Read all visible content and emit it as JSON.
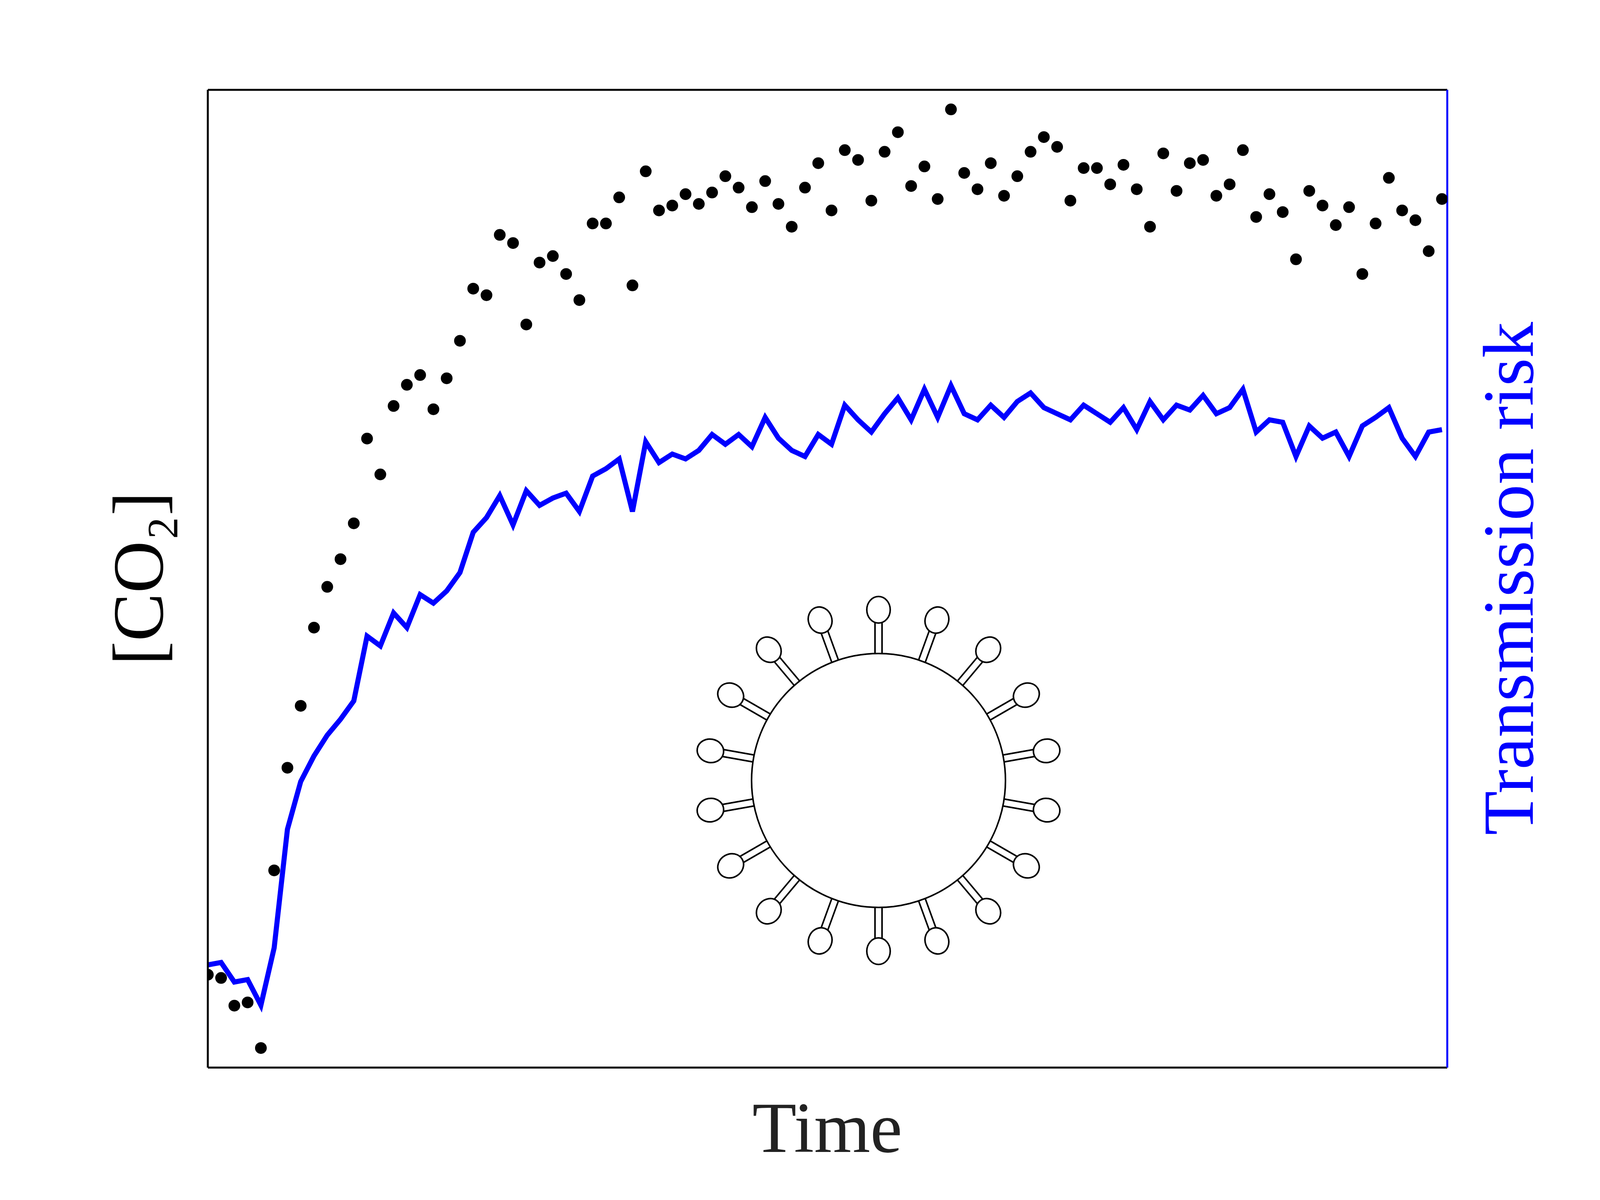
{
  "chart_data": {
    "type": "scatter",
    "x_label": "Time",
    "y_label": "[CO₂]",
    "y2_label": "Transmission risk",
    "tick_labels": false,
    "grid": false,
    "xlim": [
      0,
      4.67
    ],
    "xticks": [
      0.28,
      1.28,
      2.28,
      3.28,
      4.28
    ],
    "ylim": [
      0,
      6
    ],
    "yticks": [
      1,
      2,
      3,
      4,
      5
    ],
    "y2lim": [
      0,
      8
    ],
    "y2ticks": [
      1,
      2,
      3,
      4,
      5,
      6
    ],
    "x": [
      0,
      0.05,
      0.1,
      0.15,
      0.2,
      0.25,
      0.3,
      0.35,
      0.4,
      0.45,
      0.5,
      0.55,
      0.6,
      0.65,
      0.7,
      0.75,
      0.8,
      0.85,
      0.9,
      0.95,
      1,
      1.05,
      1.1,
      1.15,
      1.2,
      1.25,
      1.3,
      1.35,
      1.4,
      1.45,
      1.5,
      1.55,
      1.6,
      1.65,
      1.7,
      1.75,
      1.8,
      1.85,
      1.9,
      1.95,
      2,
      2.05,
      2.1,
      2.15,
      2.2,
      2.25,
      2.3,
      2.35,
      2.4,
      2.45,
      2.5,
      2.55,
      2.6,
      2.65,
      2.7,
      2.75,
      2.8,
      2.85,
      2.9,
      2.95,
      3,
      3.05,
      3.1,
      3.15,
      3.2,
      3.25,
      3.3,
      3.35,
      3.4,
      3.45,
      3.5,
      3.55,
      3.6,
      3.65,
      3.7,
      3.75,
      3.8,
      3.85,
      3.9,
      3.95,
      4,
      4.05,
      4.1,
      4.15,
      4.2,
      4.25,
      4.3,
      4.35,
      4.4,
      4.45,
      4.5,
      4.55,
      4.6,
      4.65
    ],
    "series": [
      {
        "type": "scatter",
        "color": "#000000",
        "marker": "circle",
        "values": [
          0.57,
          0.55,
          0.38,
          0.4,
          0.12,
          1.21,
          1.84,
          2.22,
          2.7,
          2.95,
          3.12,
          3.34,
          3.86,
          3.64,
          4.06,
          4.19,
          4.25,
          4.04,
          4.23,
          4.46,
          4.78,
          4.74,
          5.11,
          5.06,
          4.56,
          4.94,
          4.98,
          4.87,
          4.71,
          5.18,
          5.18,
          5.34,
          4.8,
          5.5,
          5.26,
          5.29,
          5.36,
          5.3,
          5.37,
          5.47,
          5.4,
          5.28,
          5.44,
          5.3,
          5.16,
          5.4,
          5.55,
          5.26,
          5.63,
          5.57,
          5.32,
          5.62,
          5.74,
          5.41,
          5.53,
          5.33,
          5.88,
          5.49,
          5.39,
          5.55,
          5.35,
          5.47,
          5.62,
          5.71,
          5.65,
          5.32,
          5.52,
          5.52,
          5.42,
          5.54,
          5.39,
          5.16,
          5.61,
          5.38,
          5.55,
          5.57,
          5.35,
          5.42,
          5.63,
          5.22,
          5.36,
          5.25,
          4.96,
          5.38,
          5.29,
          5.17,
          5.28,
          4.87,
          5.18,
          5.46,
          5.26,
          5.2,
          5.01,
          5.33
        ]
      },
      {
        "type": "line",
        "color": "#0000ff",
        "axis": "y2",
        "line_style": "solid",
        "values": [
          0.84,
          0.86,
          0.7,
          0.72,
          0.51,
          0.98,
          1.95,
          2.34,
          2.55,
          2.72,
          2.85,
          3.0,
          3.53,
          3.45,
          3.72,
          3.6,
          3.87,
          3.8,
          3.9,
          4.05,
          4.38,
          4.5,
          4.68,
          4.44,
          4.72,
          4.6,
          4.66,
          4.7,
          4.55,
          4.84,
          4.9,
          4.98,
          4.55,
          5.12,
          4.95,
          5.02,
          4.98,
          5.05,
          5.18,
          5.1,
          5.18,
          5.08,
          5.32,
          5.15,
          5.05,
          5.0,
          5.18,
          5.1,
          5.42,
          5.3,
          5.2,
          5.35,
          5.48,
          5.3,
          5.55,
          5.32,
          5.58,
          5.35,
          5.3,
          5.42,
          5.32,
          5.45,
          5.52,
          5.4,
          5.35,
          5.3,
          5.42,
          5.35,
          5.28,
          5.4,
          5.22,
          5.45,
          5.3,
          5.42,
          5.38,
          5.5,
          5.35,
          5.4,
          5.55,
          5.2,
          5.3,
          5.28,
          5.0,
          5.25,
          5.15,
          5.2,
          5.0,
          5.25,
          5.32,
          5.4,
          5.15,
          5.0,
          5.2,
          5.22
        ]
      }
    ]
  }
}
